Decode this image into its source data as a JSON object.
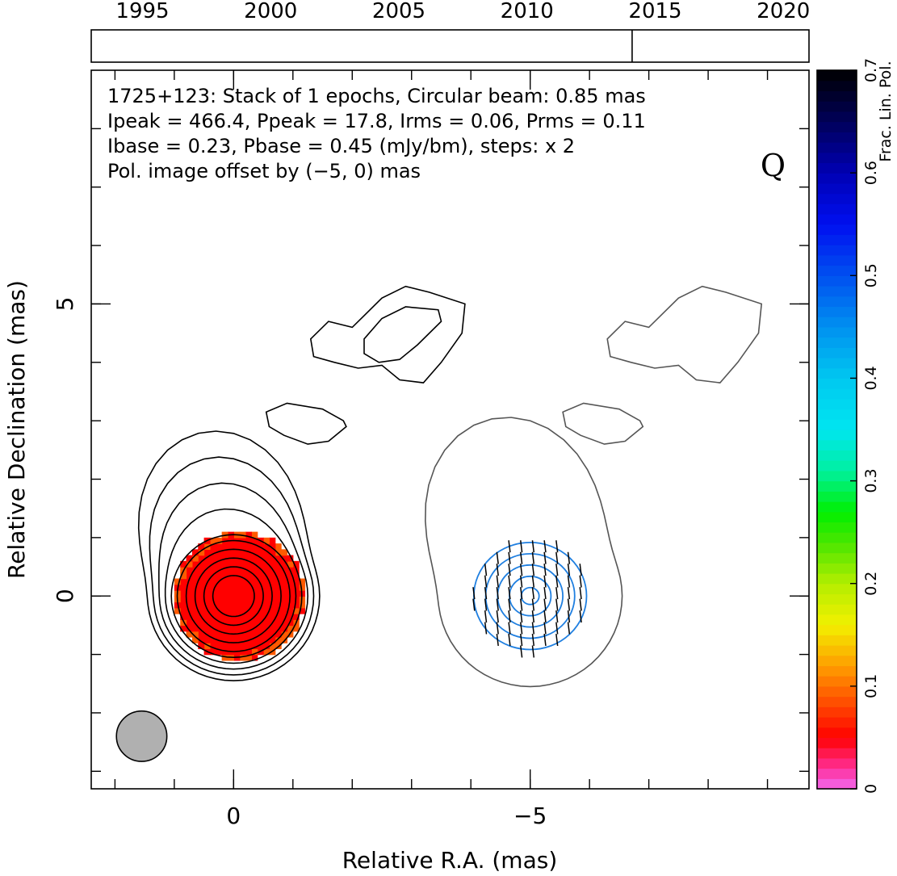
{
  "chart_data": {
    "type": "contour",
    "source": "1725+123",
    "band_label": "Q",
    "info_lines": [
      "1725+123: Stack of 1 epochs, Circular beam: 0.85 mas",
      "Ipeak = 466.4, Ppeak = 17.8, Irms = 0.06, Prms = 0.11",
      "Ibase = 0.23, Pbase = 0.45 (mJy/bm), steps: x 2"
    ],
    "offset_note": "Pol. image offset by (−5, 0) mas",
    "offset_color": "#1f7fe0",
    "xlabel": "Relative R.A. (mas)",
    "ylabel": "Relative Declination (mas)",
    "xlim": [
      2.4,
      -9.7
    ],
    "ylim": [
      -3.3,
      9.0
    ],
    "x_tick_labels": [
      {
        "value": 0,
        "label": "0"
      },
      {
        "value": -5,
        "label": "−5"
      }
    ],
    "y_tick_labels": [
      {
        "value": 0,
        "label": "0"
      },
      {
        "value": 5,
        "label": "5"
      }
    ],
    "x_minor_ticks": [
      2,
      1,
      0,
      -1,
      -2,
      -3,
      -4,
      -5,
      -6,
      -7,
      -8,
      -9
    ],
    "y_minor_ticks": [
      -3,
      -2,
      -1,
      0,
      1,
      2,
      3,
      4,
      5,
      6,
      7,
      8
    ],
    "timeline": {
      "years": [
        "1995",
        "2000",
        "2005",
        "2010",
        "2015",
        "2020"
      ],
      "year_values": [
        1995,
        2000,
        2005,
        2010,
        2015,
        2020
      ],
      "range": [
        1993.0,
        2021.0
      ],
      "epoch": 2014.1
    },
    "colorbar": {
      "label": "Frac. Lin. Pol.",
      "range": [
        0,
        0.7
      ],
      "ticks": [
        {
          "value": 0,
          "label": "0"
        },
        {
          "value": 0.1,
          "label": "0.1"
        },
        {
          "value": 0.2,
          "label": "0.2"
        },
        {
          "value": 0.3,
          "label": "0.3"
        },
        {
          "value": 0.4,
          "label": "0.4"
        },
        {
          "value": 0.5,
          "label": "0.5"
        },
        {
          "value": 0.6,
          "label": "0.6"
        },
        {
          "value": 0.7,
          "label": "0.7"
        }
      ]
    },
    "beam": {
      "diameter_mas": 0.85,
      "color": "#b0b0b0"
    },
    "fractional_pol_map": {
      "center": [
        0,
        0
      ],
      "radius_mas": 1.1,
      "value": 0.05,
      "color": "#ff0000",
      "edge_color": "#ff5a00"
    },
    "stokes_I_contours": {
      "color": "#000000",
      "core_radii_mas": [
        0.35,
        0.5,
        0.65,
        0.8,
        0.95,
        1.05,
        1.15,
        1.25,
        1.35,
        1.45
      ]
    },
    "pol_contours": {
      "color": "#1f7fe0",
      "radii_mas": [
        0.15,
        0.35,
        0.55,
        0.75,
        0.95
      ],
      "center": [
        -5,
        0
      ]
    },
    "ipol_outline_offset": {
      "color": "#555555",
      "dx_mas": -5
    }
  }
}
